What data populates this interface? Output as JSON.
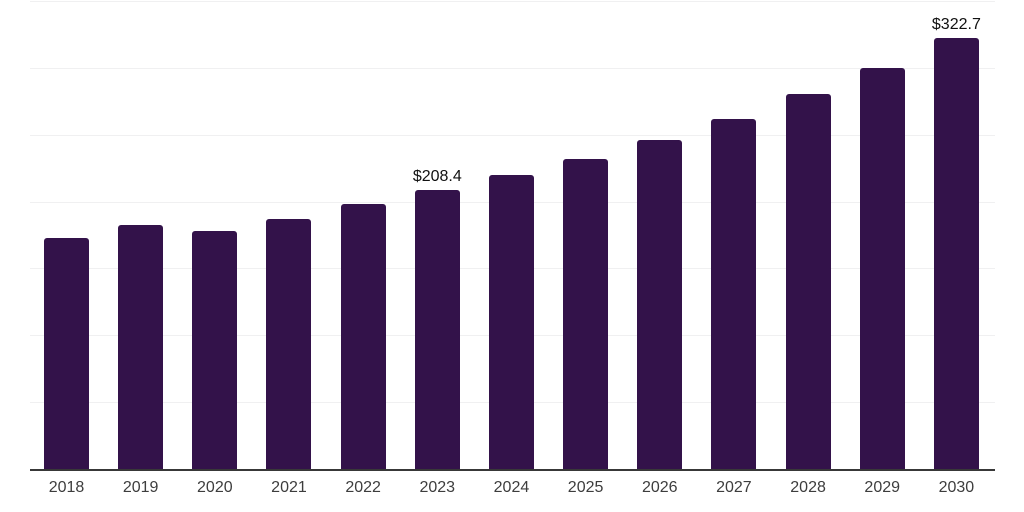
{
  "chart_data": {
    "type": "bar",
    "title": "",
    "xlabel": "",
    "ylabel": "",
    "categories": [
      "2018",
      "2019",
      "2020",
      "2021",
      "2022",
      "2023",
      "2024",
      "2025",
      "2026",
      "2027",
      "2028",
      "2029",
      "2030"
    ],
    "values": [
      172.8,
      182.8,
      178.4,
      187.3,
      197.9,
      208.4,
      219.6,
      232.1,
      246.3,
      262.1,
      280.2,
      300.2,
      322.7
    ],
    "data_labels": [
      "",
      "",
      "",
      "",
      "",
      "$208.4",
      "",
      "",
      "",
      "",
      "",
      "",
      "$322.7"
    ],
    "ylim": [
      0,
      350
    ],
    "gridline_interval": 50,
    "grid": true,
    "legend_position": "none",
    "y_axis_tick_labels_visible": false,
    "colors": {
      "bar": "#33124a",
      "gridline": "#f0f0f1",
      "axis_line": "#383838",
      "tick_label": "#3d3d3d",
      "data_label": "#111111",
      "background": "#ffffff"
    }
  }
}
